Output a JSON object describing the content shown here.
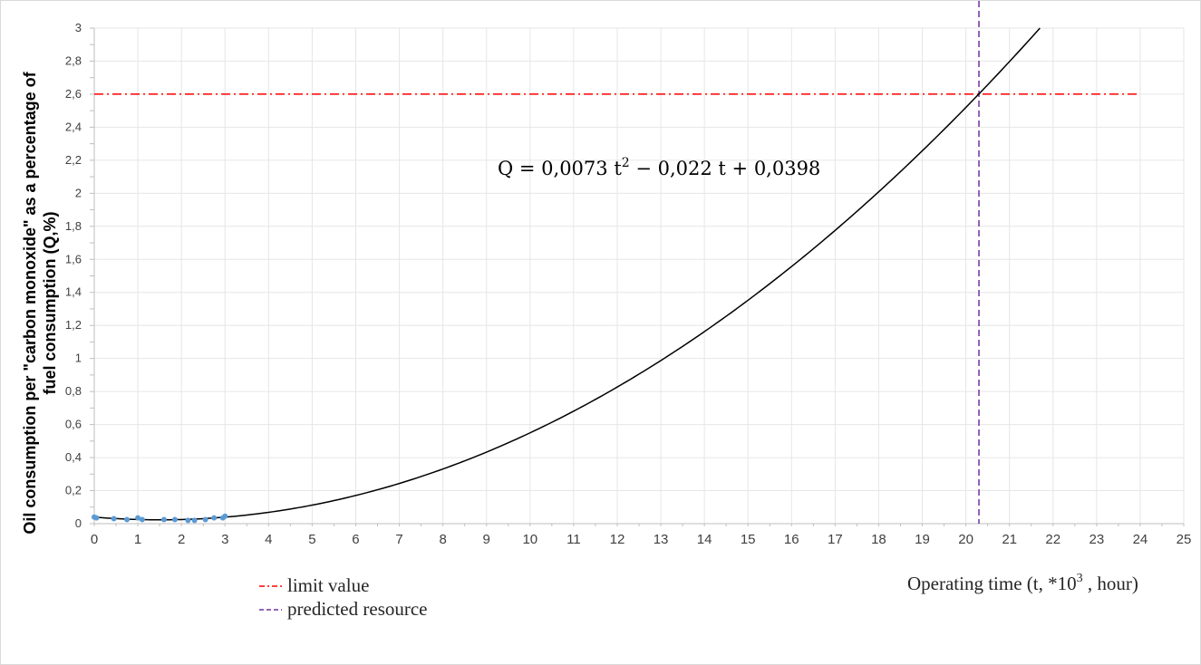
{
  "chart_data": {
    "type": "scatter",
    "xlabel": "Operating time (t, *10",
    "xlabel_sup": "3",
    "xlabel_suffix": " , hour)",
    "ylabel_line1": "Oil consumption per \"carbon monoxide\" as a percentage of",
    "ylabel_line2": "fuel consumption (Q,%)",
    "xlim": [
      0,
      25
    ],
    "ylim": [
      0,
      3
    ],
    "x_ticks": [
      "0",
      "1",
      "2",
      "3",
      "4",
      "5",
      "6",
      "7",
      "8",
      "9",
      "10",
      "11",
      "12",
      "13",
      "14",
      "15",
      "16",
      "17",
      "18",
      "19",
      "20",
      "21",
      "22",
      "23",
      "24",
      "25"
    ],
    "y_ticks": [
      "0",
      "0,2",
      "0,4",
      "0,6",
      "0,8",
      "1",
      "1,2",
      "1,4",
      "1,6",
      "1,8",
      "2",
      "2,2",
      "2,4",
      "2,6",
      "2,8",
      "3"
    ],
    "grid": true,
    "series": [
      {
        "color": "#5b9bd5",
        "marker": "dot",
        "x": [
          0.0,
          0.05,
          0.45,
          0.75,
          1.0,
          1.1,
          1.6,
          1.85,
          2.15,
          2.3,
          2.55,
          2.75,
          2.95,
          3.0
        ],
        "y": [
          0.04,
          0.035,
          0.03,
          0.025,
          0.035,
          0.025,
          0.025,
          0.025,
          0.02,
          0.02,
          0.025,
          0.035,
          0.035,
          0.045
        ]
      }
    ],
    "trend": {
      "type": "polynomial",
      "coefficients": [
        0.0073,
        -0.022,
        0.0398
      ],
      "x_range": [
        0,
        21.7
      ],
      "color": "#000000",
      "equation_label": {
        "prefix": "Q = 0,0073 t",
        "power": "2",
        "suffix": " − 0,022 t + 0,0398"
      }
    },
    "reference_lines": [
      {
        "orientation": "horizontal",
        "value": 2.6,
        "x_range": [
          0,
          24
        ],
        "color": "#ff0000",
        "style": "dash-dot",
        "legend": "limit value"
      },
      {
        "orientation": "vertical",
        "value": 20.3,
        "color": "#7030a0",
        "style": "dashed",
        "legend": "predicted resource"
      }
    ],
    "legend_position": "bottom-left"
  }
}
